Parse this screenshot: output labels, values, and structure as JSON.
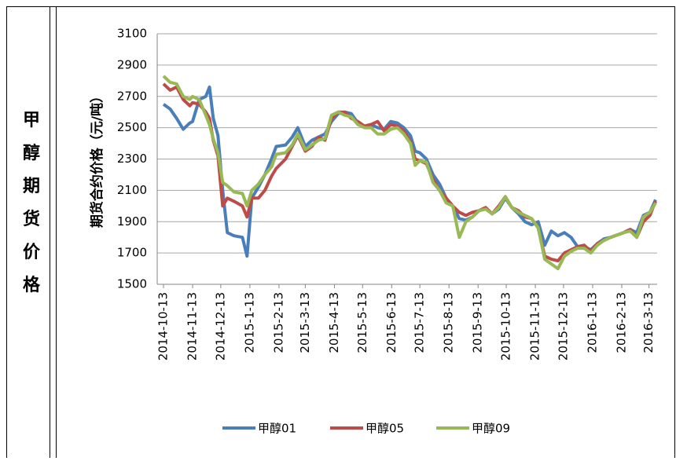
{
  "side_label": "甲醇期货价格",
  "chart_data": {
    "type": "line",
    "y_axis_label": "期货合约价格（元/吨）",
    "x": [
      "2014-10-13",
      "2014-10-20",
      "2014-10-27",
      "2014-11-03",
      "2014-11-10",
      "2014-11-13",
      "2014-11-20",
      "2014-11-27",
      "2014-12-01",
      "2014-12-05",
      "2014-12-10",
      "2014-12-15",
      "2014-12-20",
      "2014-12-27",
      "2015-01-05",
      "2015-01-10",
      "2015-01-15",
      "2015-01-22",
      "2015-01-29",
      "2015-02-05",
      "2015-02-10",
      "2015-02-20",
      "2015-02-27",
      "2015-03-05",
      "2015-03-13",
      "2015-03-20",
      "2015-03-27",
      "2015-04-03",
      "2015-04-10",
      "2015-04-17",
      "2015-04-24",
      "2015-05-01",
      "2015-05-08",
      "2015-05-15",
      "2015-05-22",
      "2015-05-29",
      "2015-06-05",
      "2015-06-12",
      "2015-06-19",
      "2015-06-26",
      "2015-07-03",
      "2015-07-08",
      "2015-07-13",
      "2015-07-20",
      "2015-07-27",
      "2015-08-03",
      "2015-08-10",
      "2015-08-17",
      "2015-08-24",
      "2015-08-31",
      "2015-09-07",
      "2015-09-14",
      "2015-09-21",
      "2015-09-28",
      "2015-10-05",
      "2015-10-12",
      "2015-10-19",
      "2015-10-26",
      "2015-11-02",
      "2015-11-09",
      "2015-11-16",
      "2015-11-23",
      "2015-11-30",
      "2015-12-07",
      "2015-12-14",
      "2015-12-21",
      "2015-12-28",
      "2016-01-04",
      "2016-01-11",
      "2016-01-18",
      "2016-01-25",
      "2016-02-01",
      "2016-02-15",
      "2016-02-22",
      "2016-02-29",
      "2016-03-07",
      "2016-03-14",
      "2016-03-20"
    ],
    "series": [
      {
        "name": "甲醇01",
        "color": "#4a7ebb",
        "values": [
          2650,
          2620,
          2560,
          2490,
          2530,
          2540,
          2680,
          2700,
          2760,
          2560,
          2450,
          2100,
          1830,
          1810,
          1800,
          1680,
          2050,
          2120,
          2200,
          2300,
          2380,
          2390,
          2440,
          2500,
          2380,
          2420,
          2440,
          2460,
          2540,
          2590,
          2600,
          2590,
          2530,
          2510,
          2520,
          2500,
          2490,
          2540,
          2530,
          2500,
          2450,
          2350,
          2340,
          2300,
          2200,
          2140,
          2050,
          2000,
          1920,
          1910,
          1930,
          1970,
          1990,
          1950,
          1980,
          2050,
          1990,
          1950,
          1900,
          1880,
          1900,
          1750,
          1840,
          1810,
          1830,
          1800,
          1740,
          1740,
          1720,
          1760,
          1790,
          1800,
          1830,
          1850,
          1830,
          1940,
          1960,
          2040
        ]
      },
      {
        "name": "甲醇05",
        "color": "#be4b48",
        "values": [
          2780,
          2740,
          2760,
          2680,
          2640,
          2660,
          2650,
          2600,
          2560,
          2420,
          2320,
          2000,
          2050,
          2030,
          2000,
          1930,
          2050,
          2050,
          2100,
          2190,
          2240,
          2300,
          2380,
          2450,
          2350,
          2380,
          2440,
          2420,
          2560,
          2600,
          2600,
          2560,
          2540,
          2510,
          2520,
          2540,
          2480,
          2520,
          2510,
          2480,
          2410,
          2300,
          2290,
          2270,
          2170,
          2100,
          2050,
          2000,
          1960,
          1940,
          1960,
          1970,
          1990,
          1950,
          2000,
          2060,
          1990,
          1970,
          1930,
          1920,
          1860,
          1680,
          1660,
          1650,
          1700,
          1720,
          1740,
          1750,
          1710,
          1760,
          1780,
          1800,
          1830,
          1850,
          1800,
          1900,
          1940,
          2030
        ]
      },
      {
        "name": "甲醇09",
        "color": "#98b954",
        "values": [
          2830,
          2790,
          2780,
          2700,
          2680,
          2700,
          2680,
          2580,
          2520,
          2430,
          2340,
          2150,
          2130,
          2090,
          2080,
          2000,
          2100,
          2140,
          2200,
          2250,
          2330,
          2340,
          2390,
          2460,
          2360,
          2390,
          2420,
          2430,
          2580,
          2600,
          2580,
          2570,
          2520,
          2500,
          2500,
          2460,
          2460,
          2490,
          2500,
          2460,
          2400,
          2260,
          2290,
          2280,
          2150,
          2100,
          2020,
          2000,
          1800,
          1900,
          1930,
          1970,
          1980,
          1950,
          1990,
          2060,
          1990,
          1960,
          1940,
          1920,
          1860,
          1660,
          1630,
          1600,
          1680,
          1710,
          1730,
          1730,
          1700,
          1750,
          1780,
          1800,
          1830,
          1840,
          1800,
          1930,
          1960,
          2020
        ]
      }
    ],
    "xlim": [
      "2014-10-13",
      "2016-03-20"
    ],
    "xticks": [
      "2014-10-13",
      "2014-11-13",
      "2014-12-13",
      "2015-1-13",
      "2015-2-13",
      "2015-3-13",
      "2015-4-13",
      "2015-5-13",
      "2015-6-13",
      "2015-7-13",
      "2015-8-13",
      "2015-9-13",
      "2015-10-13",
      "2015-11-13",
      "2015-12-13",
      "2016-1-13",
      "2016-2-13",
      "2016-3-13"
    ],
    "ylim": [
      1500,
      3100
    ],
    "yticks": [
      1500,
      1700,
      1900,
      2100,
      2300,
      2500,
      2700,
      2900,
      3100
    ],
    "grid": true
  }
}
